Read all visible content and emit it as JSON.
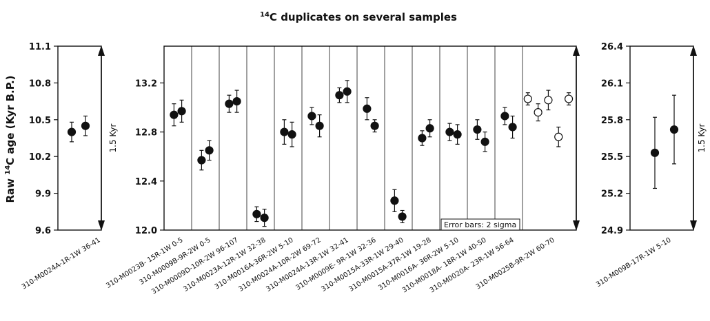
{
  "chart_data": {
    "type": "scatter",
    "title_main": "C duplicates on several samples",
    "title_sup": "14",
    "ylabel_pre": "Raw ",
    "ylabel_sup": "14",
    "ylabel_post": "C age (Kyr B.P.)",
    "error_note": "Error bars: 2 sigma",
    "panels": [
      {
        "id": "left",
        "ylim": [
          9.6,
          11.1
        ],
        "ticks": [
          "9.6",
          "9.9",
          "10.2",
          "10.5",
          "10.8",
          "11.1"
        ],
        "range_label": "1.5 Kyr",
        "groups": [
          {
            "label": "310-M0024A-1R-1W 36-41",
            "points": [
              {
                "y": 10.4,
                "err": 0.08,
                "filled": true
              },
              {
                "y": 10.45,
                "err": 0.08,
                "filled": true
              }
            ]
          }
        ]
      },
      {
        "id": "middle",
        "ylim": [
          12.0,
          13.5
        ],
        "ticks": [
          "12.0",
          "12.4",
          "12.8",
          "13.2"
        ],
        "range_label": "",
        "groups": [
          {
            "label": "310-M0023B- 15R-1W 0-5",
            "points": [
              {
                "y": 12.94,
                "err": 0.09,
                "filled": true
              },
              {
                "y": 12.97,
                "err": 0.09,
                "filled": true
              }
            ]
          },
          {
            "label": "310-M0009B-9R-2W 0-5",
            "points": [
              {
                "y": 12.57,
                "err": 0.08,
                "filled": true
              },
              {
                "y": 12.65,
                "err": 0.08,
                "filled": true
              }
            ]
          },
          {
            "label": "310-M0009D-10R-2W 96-107",
            "points": [
              {
                "y": 13.03,
                "err": 0.07,
                "filled": true
              },
              {
                "y": 13.05,
                "err": 0.09,
                "filled": true
              }
            ]
          },
          {
            "label": "310-M0023A-12R-1W 32-38",
            "points": [
              {
                "y": 12.13,
                "err": 0.06,
                "filled": true
              },
              {
                "y": 12.1,
                "err": 0.07,
                "filled": true
              }
            ]
          },
          {
            "label": "310-M0016A-36R-2W 5-10",
            "points": [
              {
                "y": 12.8,
                "err": 0.1,
                "filled": true
              },
              {
                "y": 12.78,
                "err": 0.1,
                "filled": true
              }
            ]
          },
          {
            "label": "310-M0024A-10R-2W 69-72",
            "points": [
              {
                "y": 12.93,
                "err": 0.07,
                "filled": true
              },
              {
                "y": 12.85,
                "err": 0.09,
                "filled": true
              }
            ]
          },
          {
            "label": "310-M0024A-13R-1W 32-41",
            "points": [
              {
                "y": 13.1,
                "err": 0.06,
                "filled": true
              },
              {
                "y": 13.13,
                "err": 0.09,
                "filled": true
              }
            ]
          },
          {
            "label": "310-M0009E- 9R-1W 32-36",
            "points": [
              {
                "y": 12.99,
                "err": 0.09,
                "filled": true
              },
              {
                "y": 12.85,
                "err": 0.05,
                "filled": true
              }
            ]
          },
          {
            "label": "310-M0015A-33R-1W 29-40",
            "points": [
              {
                "y": 12.24,
                "err": 0.09,
                "filled": true
              },
              {
                "y": 12.11,
                "err": 0.05,
                "filled": true
              }
            ]
          },
          {
            "label": "310-M0015A-37R-1W 19-28",
            "points": [
              {
                "y": 12.75,
                "err": 0.06,
                "filled": true
              },
              {
                "y": 12.83,
                "err": 0.07,
                "filled": true
              }
            ]
          },
          {
            "label": "310-M0016A- 36R-2W 5-10",
            "points": [
              {
                "y": 12.8,
                "err": 0.07,
                "filled": true
              },
              {
                "y": 12.78,
                "err": 0.08,
                "filled": true
              }
            ]
          },
          {
            "label": "310-M0018A- 18R-1W 40-50",
            "points": [
              {
                "y": 12.82,
                "err": 0.08,
                "filled": true
              },
              {
                "y": 12.72,
                "err": 0.08,
                "filled": true
              }
            ]
          },
          {
            "label": "310-M0020A- 23R-1W 56-64",
            "points": [
              {
                "y": 12.93,
                "err": 0.07,
                "filled": true
              },
              {
                "y": 12.84,
                "err": 0.09,
                "filled": true
              }
            ]
          },
          {
            "label": "310-M0025B-9R-2W 60-70",
            "points": [
              {
                "y": 13.07,
                "err": 0.05,
                "filled": false
              },
              {
                "y": 12.96,
                "err": 0.07,
                "filled": false
              },
              {
                "y": 13.06,
                "err": 0.08,
                "filled": false
              },
              {
                "y": 12.76,
                "err": 0.08,
                "filled": false
              },
              {
                "y": 13.07,
                "err": 0.05,
                "filled": false
              }
            ]
          }
        ]
      },
      {
        "id": "right",
        "ylim": [
          24.9,
          26.4
        ],
        "ticks": [
          "24.9",
          "25.2",
          "25.5",
          "25.8",
          "26.1",
          "26.4"
        ],
        "range_label": "1.5 Kyr",
        "groups": [
          {
            "label": "310-M009B-17R-1W 5-10",
            "points": [
              {
                "y": 25.53,
                "err": 0.29,
                "filled": true
              },
              {
                "y": 25.72,
                "err": 0.28,
                "filled": true
              }
            ]
          }
        ]
      }
    ]
  }
}
